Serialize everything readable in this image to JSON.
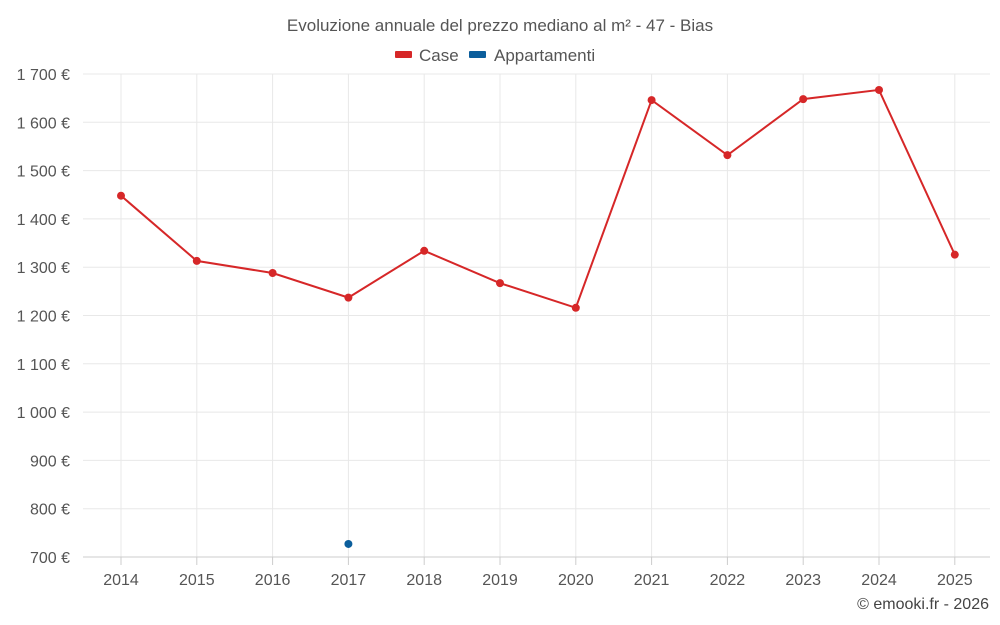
{
  "chart_data": {
    "type": "line",
    "title": "Evoluzione annuale del prezzo mediano al m² - 47 - Bias",
    "xlabel": "",
    "ylabel": "",
    "categories": [
      "2014",
      "2015",
      "2016",
      "2017",
      "2018",
      "2019",
      "2020",
      "2021",
      "2022",
      "2023",
      "2024",
      "2025"
    ],
    "ylim": [
      700,
      1700
    ],
    "y_ticks": [
      700,
      800,
      900,
      1000,
      1100,
      1200,
      1300,
      1400,
      1500,
      1600,
      1700
    ],
    "y_tick_labels": [
      "700 €",
      "800 €",
      "900 €",
      "1 000 €",
      "1 100 €",
      "1 200 €",
      "1 300 €",
      "1 400 €",
      "1 500 €",
      "1 600 €",
      "1 700 €"
    ],
    "grid": true,
    "legend_position": "top-center",
    "series": [
      {
        "name": "Case",
        "color": "#d62728",
        "values": [
          1448,
          1313,
          1288,
          1237,
          1334,
          1267,
          1216,
          1646,
          1532,
          1648,
          1667,
          1326
        ]
      },
      {
        "name": "Appartamenti",
        "color": "#0b5e9c",
        "values": [
          null,
          null,
          null,
          727,
          null,
          null,
          null,
          null,
          null,
          null,
          null,
          null
        ]
      }
    ]
  },
  "credit": "© emooki.fr - 2026"
}
